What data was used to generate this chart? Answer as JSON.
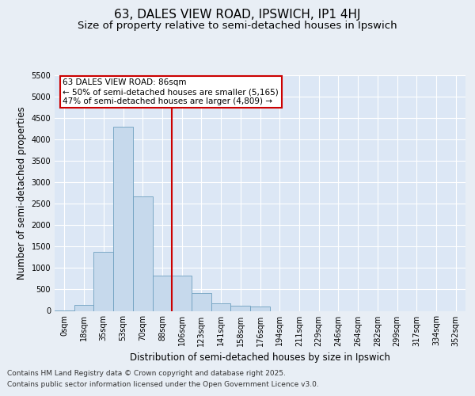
{
  "title_line1": "63, DALES VIEW ROAD, IPSWICH, IP1 4HJ",
  "title_line2": "Size of property relative to semi-detached houses in Ipswich",
  "xlabel": "Distribution of semi-detached houses by size in Ipswich",
  "ylabel": "Number of semi-detached properties",
  "bin_labels": [
    "0sqm",
    "18sqm",
    "35sqm",
    "53sqm",
    "70sqm",
    "88sqm",
    "106sqm",
    "123sqm",
    "141sqm",
    "158sqm",
    "176sqm",
    "194sqm",
    "211sqm",
    "229sqm",
    "246sqm",
    "264sqm",
    "282sqm",
    "299sqm",
    "317sqm",
    "334sqm",
    "352sqm"
  ],
  "bar_heights": [
    10,
    130,
    1380,
    4300,
    2680,
    820,
    820,
    420,
    175,
    120,
    95,
    0,
    0,
    0,
    0,
    0,
    0,
    0,
    0,
    0,
    0
  ],
  "bar_color": "#c6d9ec",
  "bar_edge_color": "#6fa0c0",
  "vline_color": "#cc0000",
  "vline_x": 5.5,
  "annotation_text": "63 DALES VIEW ROAD: 86sqm\n← 50% of semi-detached houses are smaller (5,165)\n47% of semi-detached houses are larger (4,809) →",
  "annotation_box_facecolor": "#ffffff",
  "annotation_box_edgecolor": "#cc0000",
  "ylim": [
    0,
    5500
  ],
  "yticks": [
    0,
    500,
    1000,
    1500,
    2000,
    2500,
    3000,
    3500,
    4000,
    4500,
    5000,
    5500
  ],
  "plot_bg_color": "#dce7f5",
  "fig_bg_color": "#e8eef5",
  "grid_color": "#ffffff",
  "title_fontsize": 11,
  "subtitle_fontsize": 9.5,
  "axis_label_fontsize": 8.5,
  "tick_fontsize": 7,
  "annotation_fontsize": 7.5,
  "footer_fontsize": 6.5,
  "footer_line1": "Contains HM Land Registry data © Crown copyright and database right 2025.",
  "footer_line2": "Contains public sector information licensed under the Open Government Licence v3.0."
}
